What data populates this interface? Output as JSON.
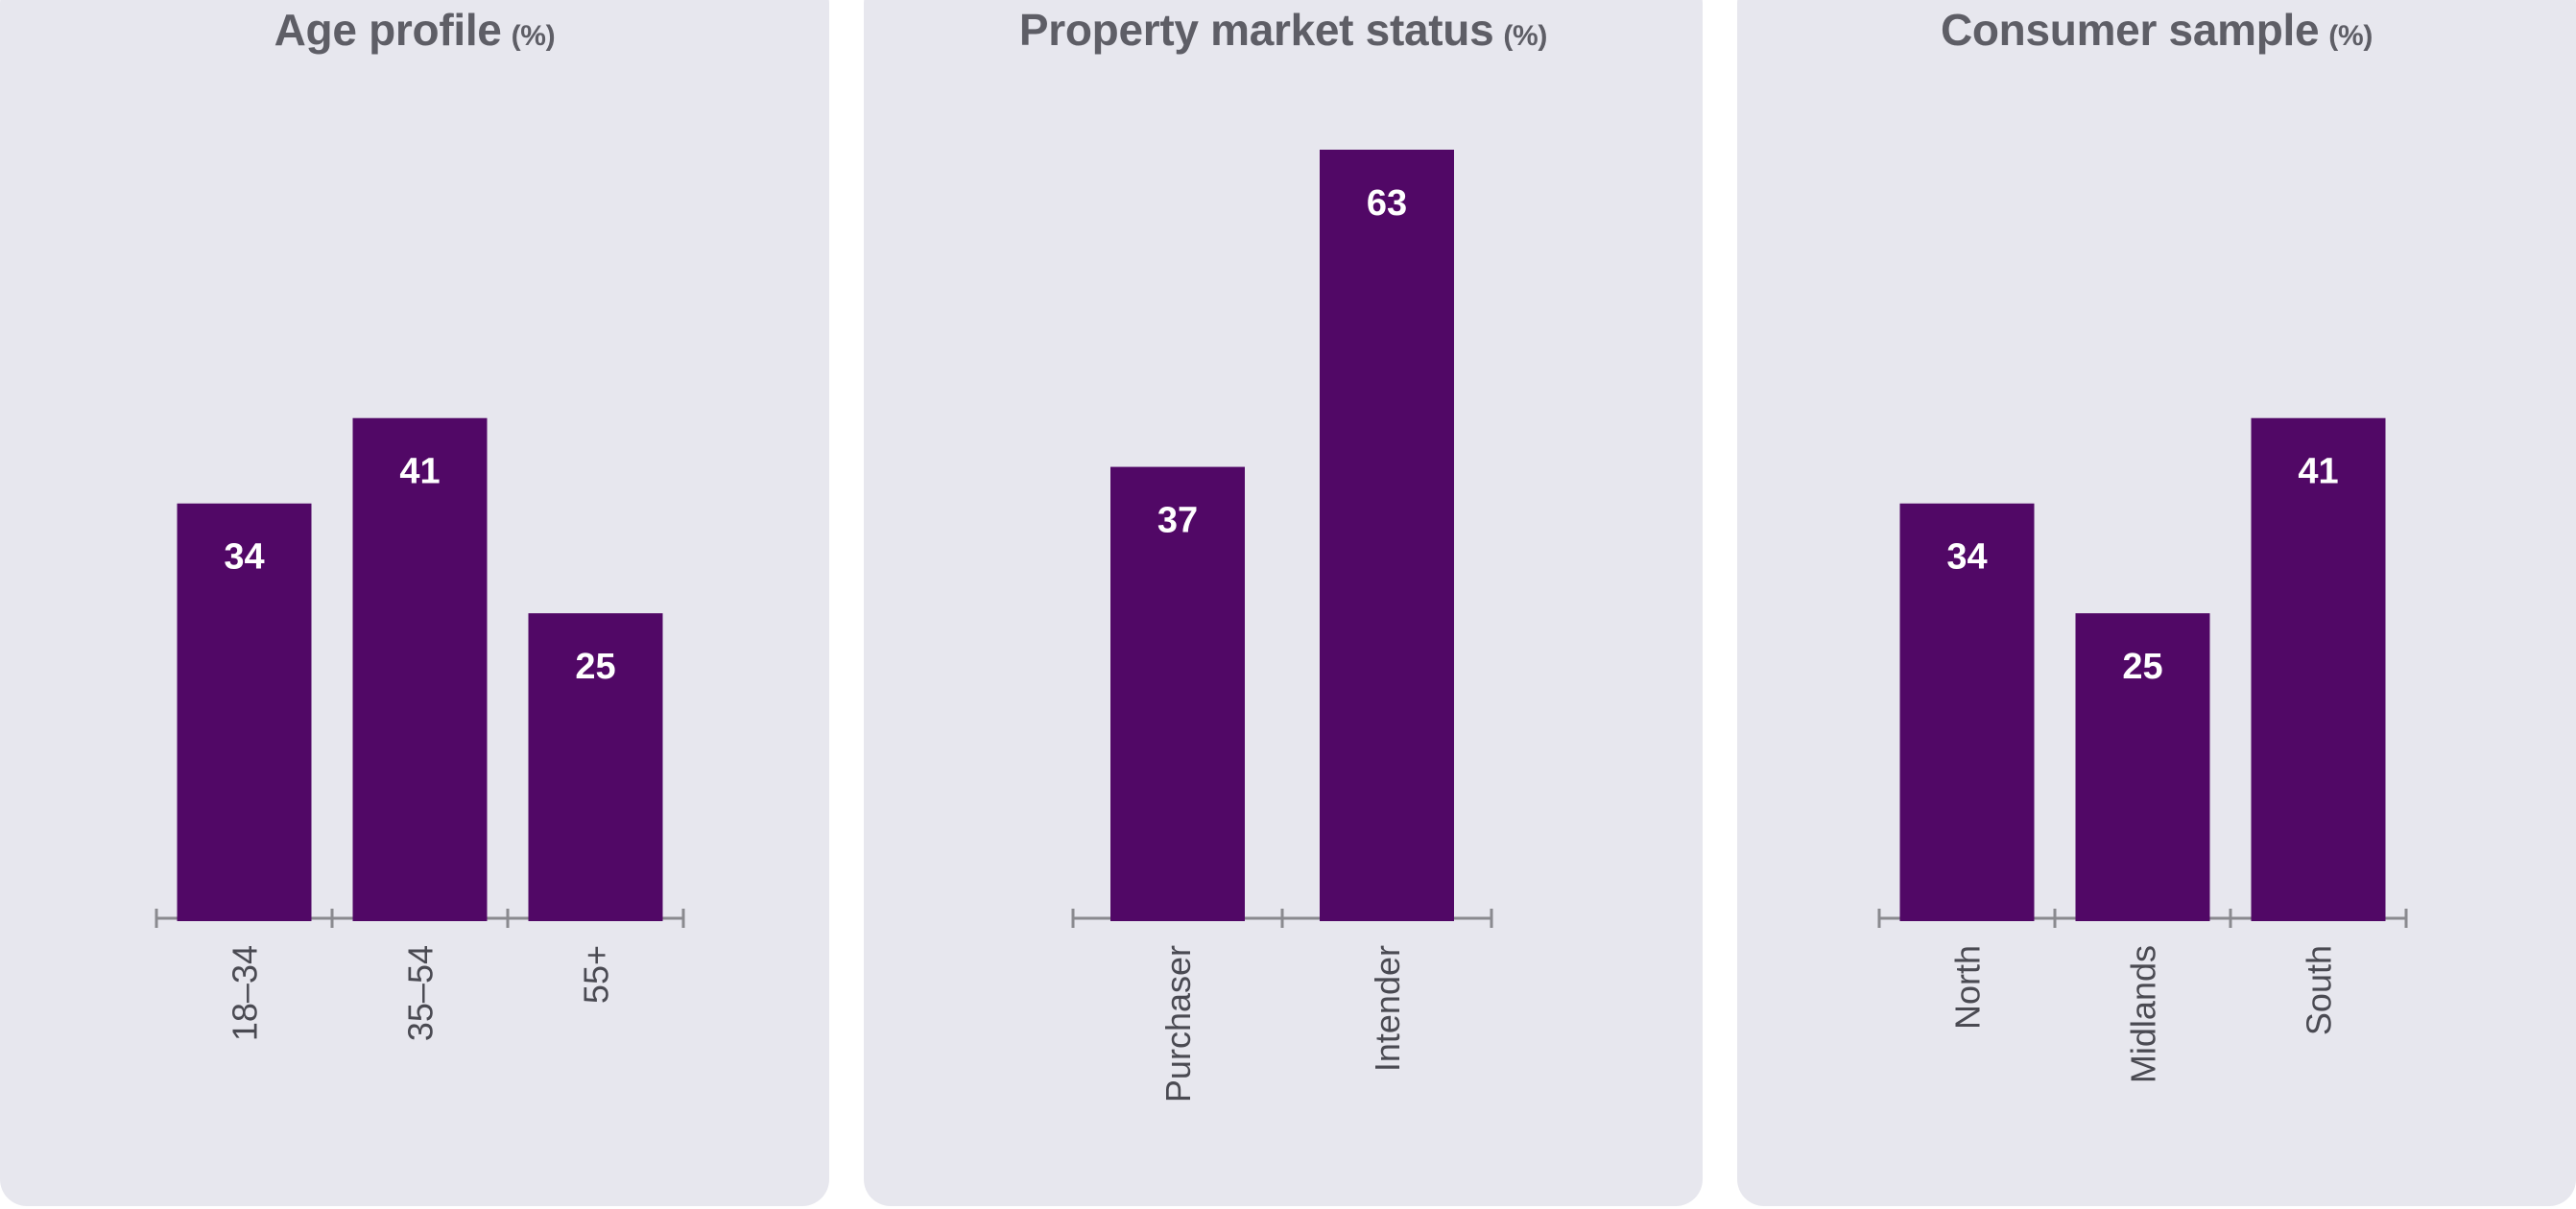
{
  "chart_data": [
    {
      "type": "bar",
      "title": "Age profile",
      "unit": "(%)",
      "categories": [
        "18–34",
        "35–54",
        "55+"
      ],
      "values": [
        34,
        41,
        25
      ],
      "ylim": [
        0,
        63
      ],
      "grid": false,
      "colors": {
        "bar": "#510866",
        "label": "#ffffff",
        "background": "#e7e7ee"
      }
    },
    {
      "type": "bar",
      "title": "Property market status",
      "unit": "(%)",
      "categories": [
        "Purchaser",
        "Intender"
      ],
      "values": [
        37,
        63
      ],
      "ylim": [
        0,
        63
      ],
      "grid": false,
      "colors": {
        "bar": "#510866",
        "label": "#ffffff",
        "background": "#e7e7ee"
      }
    },
    {
      "type": "bar",
      "title": "Consumer sample",
      "unit": "(%)",
      "categories": [
        "North",
        "Midlands",
        "South"
      ],
      "values": [
        34,
        25,
        41
      ],
      "ylim": [
        0,
        63
      ],
      "grid": false,
      "colors": {
        "bar": "#510866",
        "label": "#ffffff",
        "background": "#e7e7ee"
      }
    }
  ]
}
